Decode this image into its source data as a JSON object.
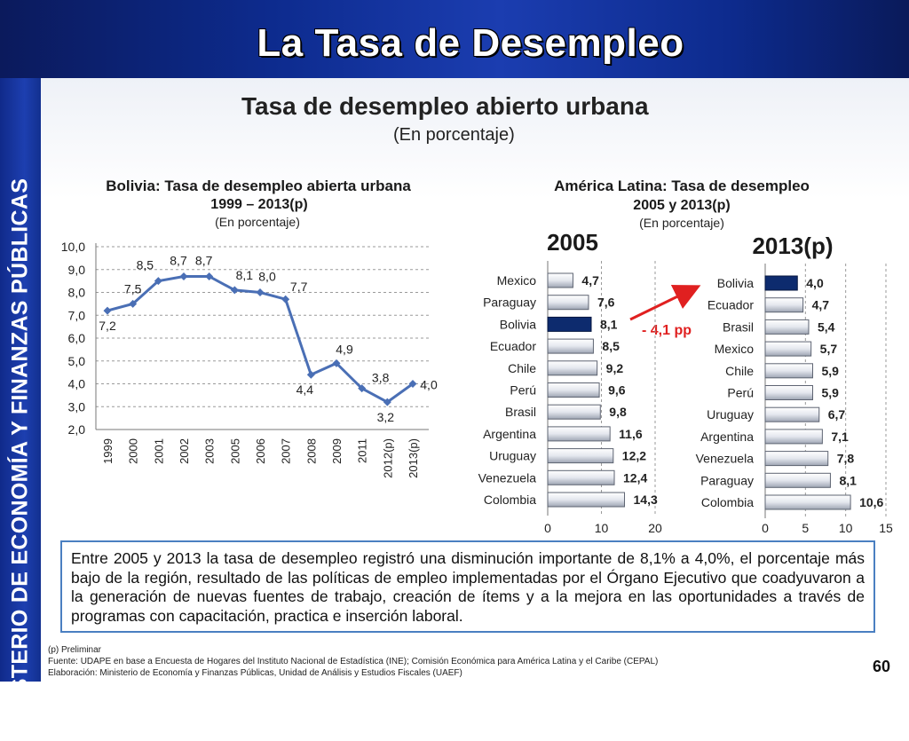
{
  "slide_title": "La Tasa de Desempleo",
  "sidebar_text": "MINISTERIO DE ECONOMÍA Y FINANZAS PÚBLICAS",
  "main_title": "Tasa de desempleo abierto urbana",
  "main_subtitle": "(En porcentaje)",
  "body_text": "Entre 2005 y 2013 la tasa de desempleo registró una disminución importante de 8,1% a 4,0%, el porcentaje más bajo de la región, resultado de las políticas de empleo implementadas por el Órgano Ejecutivo que coadyuvaron a la generación de nuevas fuentes de trabajo, creación de ítems y a la mejora en las oportunidades a través de programas con capacitación, practica e inserción laboral.",
  "footnotes": {
    "preliminar": "(p) Preliminar",
    "fuente": "Fuente: UDAPE en base a Encuesta de Hogares del Instituto Nacional de Estadística (INE); Comisión Económica para América Latina y el Caribe (CEPAL)",
    "elaboracion": "Elaboración: Ministerio de Economía y Finanzas Públicas, Unidad de Análisis y Estudios Fiscales (UAEF)"
  },
  "page_number": "60",
  "colors": {
    "banner": "#0d2b8e",
    "line": "#4a6fb5",
    "highlight_bar": "#0d2b6e",
    "annotation": "#e02020",
    "textbox_border": "#4a7fc1"
  },
  "chart_data": [
    {
      "type": "line",
      "title": "Bolivia: Tasa de desempleo abierta urbana",
      "subtitle": "1999 – 2013(p)",
      "unit_label": "(En porcentaje)",
      "x": [
        "1999",
        "2000",
        "2001",
        "2002",
        "2003",
        "2005",
        "2006",
        "2007",
        "2008",
        "2009",
        "2011",
        "2012(p)",
        "2013(p)"
      ],
      "values": [
        7.2,
        7.5,
        8.5,
        8.7,
        8.7,
        8.1,
        8.0,
        7.7,
        4.4,
        4.9,
        3.8,
        3.2,
        4.0
      ],
      "labels": [
        "7,2",
        "7,5",
        "8,5",
        "8,7",
        "8,7",
        "8,1",
        "8,0",
        "7,7",
        "4,4",
        "4,9",
        "3,8",
        "3,2",
        "4,0"
      ],
      "yticks": [
        "10,0",
        "9,0",
        "8,0",
        "7,0",
        "6,0",
        "5,0",
        "4,0",
        "3,0",
        "2,0"
      ],
      "ylim": [
        2.0,
        10.0
      ],
      "grid": true
    },
    {
      "type": "bar",
      "title": "América Latina: Tasa de desempleo",
      "subtitle": "2005 y 2013(p)",
      "unit_label": "(En porcentaje)",
      "panels": [
        {
          "label": "2005",
          "categories": [
            "Mexico",
            "Paraguay",
            "Bolivia",
            "Ecuador",
            "Chile",
            "Perú",
            "Brasil",
            "Argentina",
            "Uruguay",
            "Venezuela",
            "Colombia"
          ],
          "values": [
            4.7,
            7.6,
            8.1,
            8.5,
            9.2,
            9.6,
            9.8,
            11.6,
            12.2,
            12.4,
            14.3
          ],
          "labels": [
            "4,7",
            "7,6",
            "8,1",
            "8,5",
            "9,2",
            "9,6",
            "9,8",
            "11,6",
            "12,2",
            "12,4",
            "14,3"
          ],
          "highlight": "Bolivia",
          "xticks": [
            "0",
            "10",
            "20"
          ],
          "xlim": [
            0,
            20
          ]
        },
        {
          "label": "2013(p)",
          "categories": [
            "Bolivia",
            "Ecuador",
            "Brasil",
            "Mexico",
            "Chile",
            "Perú",
            "Uruguay",
            "Argentina",
            "Venezuela",
            "Paraguay",
            "Colombia"
          ],
          "values": [
            4.0,
            4.7,
            5.4,
            5.7,
            5.9,
            5.9,
            6.7,
            7.1,
            7.8,
            8.1,
            10.6
          ],
          "labels": [
            "4,0",
            "4,7",
            "5,4",
            "5,7",
            "5,9",
            "5,9",
            "6,7",
            "7,1",
            "7,8",
            "8,1",
            "10,6"
          ],
          "highlight": "Bolivia",
          "xticks": [
            "0",
            "5",
            "10",
            "15"
          ],
          "xlim": [
            0,
            15
          ]
        }
      ],
      "annotation": "- 4,1 pp",
      "grid": true
    }
  ]
}
